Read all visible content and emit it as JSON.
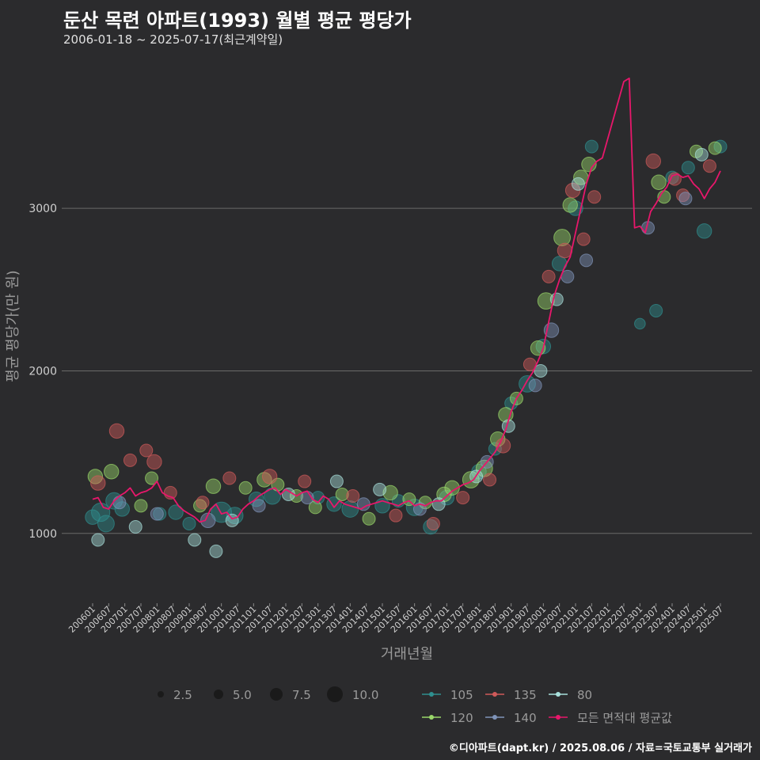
{
  "header": {
    "title": "둔산 목련 아파트(1993) 월별 평균 평당가",
    "subtitle": "2006-01-18 ~ 2025-07-17(최근계약일)"
  },
  "credit": "©디아파트(dapt.kr) / 2025.08.06 / 자료=국토교통부 실거래가",
  "colors": {
    "background": "#2b2b2d",
    "grid": "#6a6a6a",
    "s105": "#2f8f8f",
    "s120": "#9ad86a",
    "s135": "#d05a5a",
    "s140": "#7f93b8",
    "s80": "#a8e0dc",
    "avg": "#e8176b"
  },
  "chart_data": {
    "type": "scatter",
    "title": "둔산 목련 아파트(1993) 월별 평균 평당가",
    "xlabel": "거래년월",
    "ylabel": "평균 평당가(만 원)",
    "ylim": [
      580,
      3960
    ],
    "yticks": [
      1000,
      2000,
      3000
    ],
    "x_range": [
      "200601",
      "202507"
    ],
    "x_ticks": [
      "200601",
      "200607",
      "200701",
      "200707",
      "200801",
      "200807",
      "200901",
      "200907",
      "201001",
      "201007",
      "201101",
      "201107",
      "201201",
      "201207",
      "201301",
      "201307",
      "201401",
      "201407",
      "201501",
      "201507",
      "201601",
      "201607",
      "201701",
      "201707",
      "201801",
      "201807",
      "201901",
      "201907",
      "202001",
      "202007",
      "202101",
      "202107",
      "202201",
      "202207",
      "202301",
      "202307",
      "202401",
      "202407",
      "202501",
      "202507"
    ],
    "grid": "horizontal",
    "size_legend": {
      "title": "",
      "values": [
        2.5,
        5.0,
        7.5,
        10.0
      ],
      "labels": [
        "2.5",
        "5.0",
        "7.5",
        "10.0"
      ]
    },
    "color_legend": {
      "entries": [
        {
          "key": "105",
          "label": "105"
        },
        {
          "key": "135",
          "label": "135"
        },
        {
          "key": "80",
          "label": "80"
        },
        {
          "key": "120",
          "label": "120"
        },
        {
          "key": "140",
          "label": "140"
        },
        {
          "key": "avg",
          "label": "모든 면적대 평균값"
        }
      ]
    },
    "avg_line": {
      "name": "모든 면적대 평균값",
      "x": [
        "200601",
        "200603",
        "200605",
        "200607",
        "200609",
        "200611",
        "200701",
        "200703",
        "200705",
        "200707",
        "200709",
        "200711",
        "200801",
        "200803",
        "200805",
        "200807",
        "200809",
        "200811",
        "200901",
        "200903",
        "200905",
        "200907",
        "200909",
        "200911",
        "201001",
        "201003",
        "201005",
        "201007",
        "201009",
        "201011",
        "201101",
        "201103",
        "201105",
        "201107",
        "201109",
        "201111",
        "201201",
        "201203",
        "201205",
        "201207",
        "201209",
        "201211",
        "201301",
        "201303",
        "201305",
        "201307",
        "201309",
        "201311",
        "201401",
        "201403",
        "201405",
        "201407",
        "201409",
        "201411",
        "201501",
        "201503",
        "201505",
        "201507",
        "201509",
        "201511",
        "201601",
        "201603",
        "201605",
        "201607",
        "201609",
        "201611",
        "201701",
        "201703",
        "201705",
        "201707",
        "201709",
        "201711",
        "201801",
        "201803",
        "201805",
        "201807",
        "201809",
        "201811",
        "201901",
        "201903",
        "201905",
        "201907",
        "201909",
        "201911",
        "202001",
        "202003",
        "202005",
        "202007",
        "202009",
        "202011",
        "202101",
        "202103",
        "202105",
        "202107",
        "202109",
        "202111",
        "202207",
        "202209",
        "202211",
        "202301",
        "202303",
        "202305",
        "202307",
        "202309",
        "202311",
        "202401",
        "202403",
        "202405",
        "202407",
        "202409",
        "202411",
        "202501",
        "202503",
        "202505",
        "202507"
      ],
      "y": [
        1210,
        1220,
        1160,
        1150,
        1200,
        1230,
        1250,
        1280,
        1230,
        1250,
        1260,
        1280,
        1320,
        1250,
        1230,
        1220,
        1170,
        1140,
        1120,
        1100,
        1070,
        1080,
        1150,
        1180,
        1120,
        1130,
        1090,
        1100,
        1150,
        1180,
        1200,
        1230,
        1250,
        1270,
        1280,
        1240,
        1270,
        1250,
        1230,
        1250,
        1260,
        1210,
        1190,
        1230,
        1210,
        1160,
        1200,
        1180,
        1170,
        1160,
        1150,
        1170,
        1180,
        1190,
        1200,
        1190,
        1180,
        1170,
        1190,
        1200,
        1170,
        1180,
        1170,
        1190,
        1200,
        1200,
        1230,
        1260,
        1280,
        1300,
        1310,
        1330,
        1380,
        1420,
        1460,
        1500,
        1560,
        1640,
        1750,
        1830,
        1880,
        1940,
        1990,
        2060,
        2140,
        2300,
        2460,
        2560,
        2640,
        2700,
        2850,
        3000,
        3150,
        3250,
        3290,
        3310,
        3780,
        3800,
        2880,
        2890,
        2850,
        2980,
        3030,
        3090,
        3130,
        3200,
        3210,
        3190,
        3200,
        3150,
        3120,
        3060,
        3120,
        3160,
        3230
      ]
    },
    "series": [
      {
        "name": "105",
        "points": [
          {
            "x": "200601",
            "y": 1100,
            "size": 6
          },
          {
            "x": "200604",
            "y": 1130,
            "size": 8
          },
          {
            "x": "200606",
            "y": 1060,
            "size": 7
          },
          {
            "x": "200609",
            "y": 1200,
            "size": 7
          },
          {
            "x": "200612",
            "y": 1150,
            "size": 6
          },
          {
            "x": "200802",
            "y": 1120,
            "size": 5
          },
          {
            "x": "200808",
            "y": 1130,
            "size": 6
          },
          {
            "x": "200901",
            "y": 1060,
            "size": 5
          },
          {
            "x": "201001",
            "y": 1130,
            "size": 9
          },
          {
            "x": "201006",
            "y": 1110,
            "size": 7
          },
          {
            "x": "201102",
            "y": 1210,
            "size": 6
          },
          {
            "x": "201108",
            "y": 1230,
            "size": 7
          },
          {
            "x": "201301",
            "y": 1220,
            "size": 5
          },
          {
            "x": "201307",
            "y": 1180,
            "size": 6
          },
          {
            "x": "201401",
            "y": 1150,
            "size": 7
          },
          {
            "x": "201501",
            "y": 1170,
            "size": 6
          },
          {
            "x": "201507",
            "y": 1200,
            "size": 5
          },
          {
            "x": "201601",
            "y": 1160,
            "size": 7
          },
          {
            "x": "201607",
            "y": 1040,
            "size": 6
          },
          {
            "x": "201701",
            "y": 1220,
            "size": 6
          },
          {
            "x": "201801",
            "y": 1380,
            "size": 6
          },
          {
            "x": "201807",
            "y": 1520,
            "size": 5
          },
          {
            "x": "201901",
            "y": 1800,
            "size": 5
          },
          {
            "x": "201907",
            "y": 1920,
            "size": 7
          },
          {
            "x": "202001",
            "y": 2150,
            "size": 6
          },
          {
            "x": "202007",
            "y": 2660,
            "size": 6
          },
          {
            "x": "202101",
            "y": 3000,
            "size": 6
          },
          {
            "x": "202107",
            "y": 3380,
            "size": 5
          },
          {
            "x": "202301",
            "y": 2290,
            "size": 4
          },
          {
            "x": "202307",
            "y": 2370,
            "size": 5
          },
          {
            "x": "202401",
            "y": 3190,
            "size": 5
          },
          {
            "x": "202407",
            "y": 3250,
            "size": 5
          },
          {
            "x": "202501",
            "y": 2860,
            "size": 6
          },
          {
            "x": "202507",
            "y": 3380,
            "size": 5
          }
        ]
      },
      {
        "name": "120",
        "points": [
          {
            "x": "200602",
            "y": 1350,
            "size": 6
          },
          {
            "x": "200608",
            "y": 1380,
            "size": 6
          },
          {
            "x": "200707",
            "y": 1170,
            "size": 5
          },
          {
            "x": "200711",
            "y": 1340,
            "size": 5
          },
          {
            "x": "200905",
            "y": 1170,
            "size": 5
          },
          {
            "x": "200910",
            "y": 1290,
            "size": 6
          },
          {
            "x": "201010",
            "y": 1280,
            "size": 5
          },
          {
            "x": "201105",
            "y": 1330,
            "size": 6
          },
          {
            "x": "201110",
            "y": 1300,
            "size": 5
          },
          {
            "x": "201205",
            "y": 1230,
            "size": 5
          },
          {
            "x": "201212",
            "y": 1160,
            "size": 5
          },
          {
            "x": "201310",
            "y": 1240,
            "size": 5
          },
          {
            "x": "201408",
            "y": 1090,
            "size": 5
          },
          {
            "x": "201504",
            "y": 1250,
            "size": 6
          },
          {
            "x": "201511",
            "y": 1210,
            "size": 5
          },
          {
            "x": "201605",
            "y": 1190,
            "size": 5
          },
          {
            "x": "201612",
            "y": 1240,
            "size": 6
          },
          {
            "x": "201703",
            "y": 1280,
            "size": 6
          },
          {
            "x": "201710",
            "y": 1330,
            "size": 7
          },
          {
            "x": "201803",
            "y": 1400,
            "size": 7
          },
          {
            "x": "201808",
            "y": 1580,
            "size": 6
          },
          {
            "x": "201811",
            "y": 1730,
            "size": 6
          },
          {
            "x": "201903",
            "y": 1830,
            "size": 5
          },
          {
            "x": "201911",
            "y": 2140,
            "size": 6
          },
          {
            "x": "202002",
            "y": 2430,
            "size": 7
          },
          {
            "x": "202008",
            "y": 2820,
            "size": 7
          },
          {
            "x": "202011",
            "y": 3020,
            "size": 6
          },
          {
            "x": "202103",
            "y": 3190,
            "size": 6
          },
          {
            "x": "202106",
            "y": 3270,
            "size": 6
          },
          {
            "x": "202308",
            "y": 3160,
            "size": 6
          },
          {
            "x": "202310",
            "y": 3070,
            "size": 5
          },
          {
            "x": "202410",
            "y": 3350,
            "size": 5
          },
          {
            "x": "202505",
            "y": 3370,
            "size": 5
          }
        ]
      },
      {
        "name": "135",
        "points": [
          {
            "x": "200603",
            "y": 1310,
            "size": 6
          },
          {
            "x": "200610",
            "y": 1630,
            "size": 6
          },
          {
            "x": "200703",
            "y": 1450,
            "size": 5
          },
          {
            "x": "200709",
            "y": 1510,
            "size": 5
          },
          {
            "x": "200712",
            "y": 1440,
            "size": 6
          },
          {
            "x": "200806",
            "y": 1250,
            "size": 5
          },
          {
            "x": "200906",
            "y": 1190,
            "size": 5
          },
          {
            "x": "201004",
            "y": 1340,
            "size": 5
          },
          {
            "x": "201107",
            "y": 1350,
            "size": 6
          },
          {
            "x": "201208",
            "y": 1320,
            "size": 5
          },
          {
            "x": "201402",
            "y": 1230,
            "size": 5
          },
          {
            "x": "201506",
            "y": 1110,
            "size": 5
          },
          {
            "x": "201608",
            "y": 1060,
            "size": 5
          },
          {
            "x": "201707",
            "y": 1220,
            "size": 5
          },
          {
            "x": "201805",
            "y": 1330,
            "size": 5
          },
          {
            "x": "201810",
            "y": 1540,
            "size": 6
          },
          {
            "x": "201908",
            "y": 2040,
            "size": 5
          },
          {
            "x": "202003",
            "y": 2580,
            "size": 5
          },
          {
            "x": "202009",
            "y": 2740,
            "size": 6
          },
          {
            "x": "202012",
            "y": 3110,
            "size": 6
          },
          {
            "x": "202104",
            "y": 2810,
            "size": 5
          },
          {
            "x": "202108",
            "y": 3070,
            "size": 5
          },
          {
            "x": "202306",
            "y": 3290,
            "size": 6
          },
          {
            "x": "202402",
            "y": 3180,
            "size": 5
          },
          {
            "x": "202405",
            "y": 3080,
            "size": 5
          },
          {
            "x": "202503",
            "y": 3260,
            "size": 5
          }
        ]
      },
      {
        "name": "140",
        "points": [
          {
            "x": "200611",
            "y": 1190,
            "size": 5
          },
          {
            "x": "200801",
            "y": 1120,
            "size": 5
          },
          {
            "x": "200908",
            "y": 1080,
            "size": 6
          },
          {
            "x": "201103",
            "y": 1170,
            "size": 5
          },
          {
            "x": "201209",
            "y": 1220,
            "size": 5
          },
          {
            "x": "201406",
            "y": 1180,
            "size": 5
          },
          {
            "x": "201603",
            "y": 1150,
            "size": 5
          },
          {
            "x": "201804",
            "y": 1440,
            "size": 5
          },
          {
            "x": "201910",
            "y": 1910,
            "size": 5
          },
          {
            "x": "202004",
            "y": 2250,
            "size": 6
          },
          {
            "x": "202010",
            "y": 2580,
            "size": 5
          },
          {
            "x": "202105",
            "y": 2680,
            "size": 5
          },
          {
            "x": "202304",
            "y": 2880,
            "size": 5
          },
          {
            "x": "202406",
            "y": 3060,
            "size": 5
          }
        ]
      },
      {
        "name": "80",
        "points": [
          {
            "x": "200603",
            "y": 960,
            "size": 5
          },
          {
            "x": "200705",
            "y": 1040,
            "size": 5
          },
          {
            "x": "200903",
            "y": 960,
            "size": 5
          },
          {
            "x": "200911",
            "y": 890,
            "size": 5
          },
          {
            "x": "201005",
            "y": 1080,
            "size": 5
          },
          {
            "x": "201202",
            "y": 1240,
            "size": 5
          },
          {
            "x": "201308",
            "y": 1320,
            "size": 5
          },
          {
            "x": "201412",
            "y": 1270,
            "size": 5
          },
          {
            "x": "201610",
            "y": 1180,
            "size": 5
          },
          {
            "x": "201712",
            "y": 1350,
            "size": 5
          },
          {
            "x": "201812",
            "y": 1660,
            "size": 5
          },
          {
            "x": "201912",
            "y": 2000,
            "size": 5
          },
          {
            "x": "202006",
            "y": 2440,
            "size": 5
          },
          {
            "x": "202102",
            "y": 3150,
            "size": 5
          },
          {
            "x": "202412",
            "y": 3330,
            "size": 5
          }
        ]
      }
    ]
  }
}
